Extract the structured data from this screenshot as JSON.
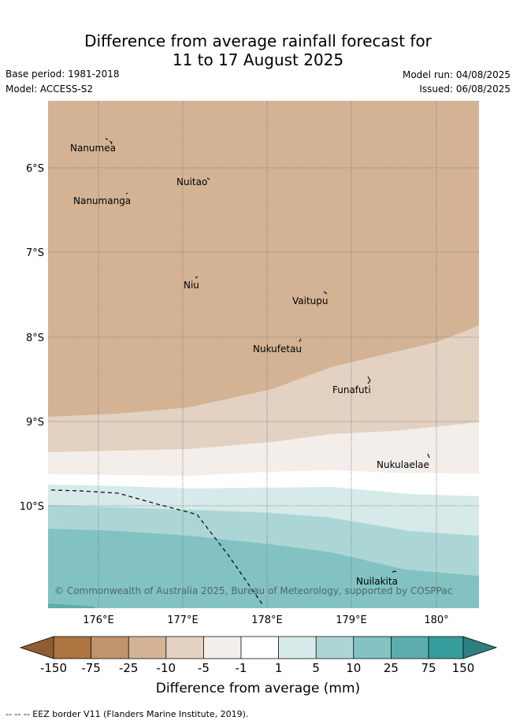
{
  "header": {
    "title_line1": "Difference from average rainfall forecast for",
    "title_line2": "11 to 17 August 2025",
    "base_period": "Base period: 1981-2018",
    "model": "Model: ACCESS-S2",
    "model_run": "Model run: 04/08/2025",
    "issued": "Issued: 06/08/2025"
  },
  "map": {
    "x_ticks": [
      "176°E",
      "177°E",
      "178°E",
      "179°E",
      "180°"
    ],
    "y_ticks": [
      "6°S",
      "7°S",
      "8°S",
      "9°S",
      "10°S"
    ],
    "islands": [
      {
        "name": "Nanumea"
      },
      {
        "name": "Nuitao"
      },
      {
        "name": "Nanumanga"
      },
      {
        "name": "Niu"
      },
      {
        "name": "Vaitupu"
      },
      {
        "name": "Nukufetau"
      },
      {
        "name": "Funafuti"
      },
      {
        "name": "Nukulaelae"
      },
      {
        "name": "Nuilakita"
      }
    ],
    "copyright": "© Commonwealth of Australia 2025, Bureau of Meteorology, supported by COSPPac"
  },
  "colorbar": {
    "title": "Difference from average (mm)",
    "labels": [
      "-150",
      "-75",
      "-25",
      "-10",
      "-5",
      "-1",
      "1",
      "5",
      "10",
      "25",
      "75",
      "150"
    ],
    "colors": [
      "#ab7440",
      "#c0956b",
      "#d3b394",
      "#e3d1c1",
      "#f4eeea",
      "#ffffff",
      "#d6eae9",
      "#acd6d6",
      "#82c2c2",
      "#5cadad",
      "#369c9c"
    ],
    "extend_low_color": "#8f5e30",
    "extend_high_color": "#2d7f80"
  },
  "footer": {
    "eez_legend": "-- -- -- EEZ border V11 (Flanders Marine Institute, 2019)."
  }
}
